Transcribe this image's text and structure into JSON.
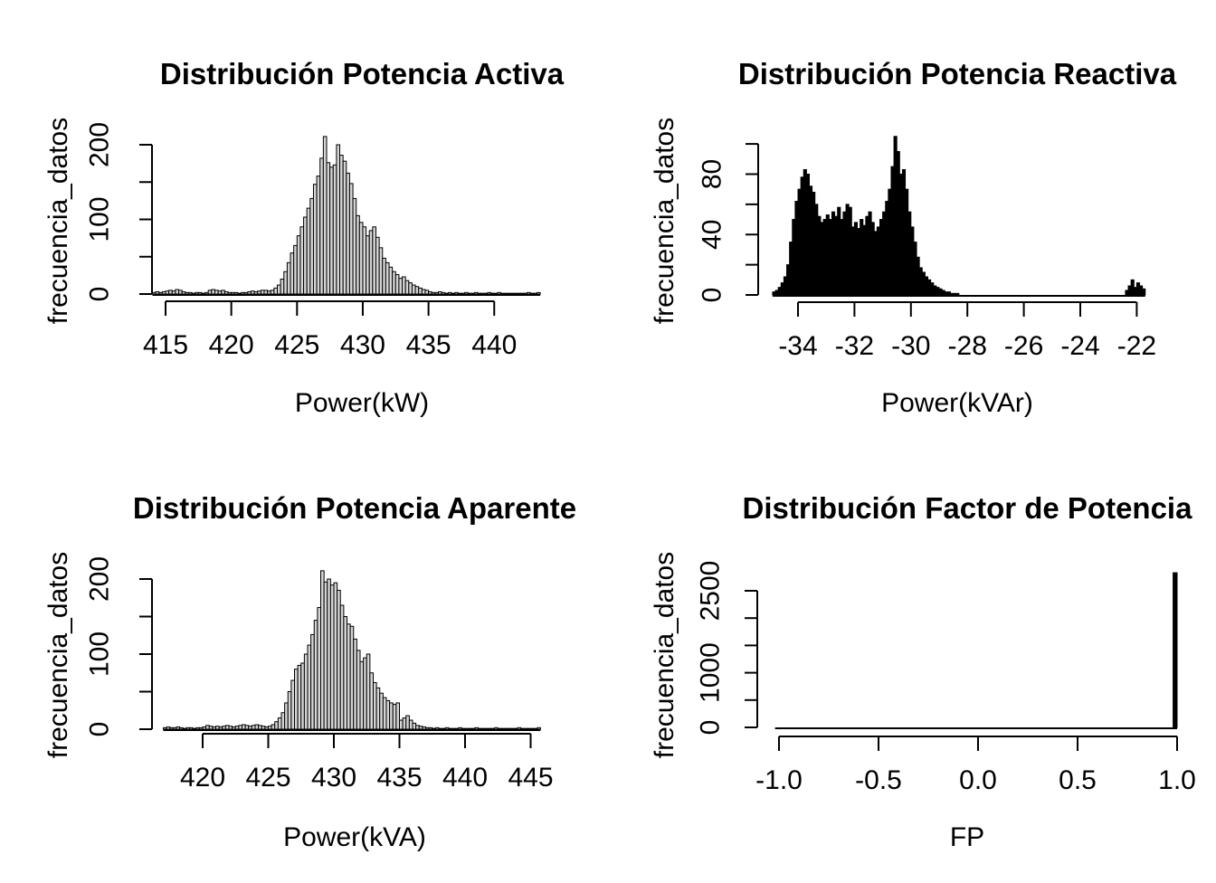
{
  "page": {
    "background": "#ffffff",
    "foreground": "#000000"
  },
  "chart_data": [
    {
      "type": "bar",
      "subtype": "histogram",
      "title": "Distribución Potencia Activa",
      "xlabel": "Power(kW)",
      "ylabel": "frecuencia_datos",
      "bar_fill": "#d4d4d4",
      "bar_stroke": "#000000",
      "grid": false,
      "legend": false,
      "xlim": [
        412.9,
        444.9
      ],
      "ylim": [
        0,
        211
      ],
      "bin_start": 414.0,
      "bin_width": 0.25,
      "counts": [
        2,
        3,
        2,
        3,
        4,
        5,
        4,
        6,
        5,
        3,
        2,
        2,
        1,
        2,
        2,
        1,
        2,
        5,
        6,
        5,
        4,
        5,
        3,
        2,
        2,
        2,
        1,
        2,
        2,
        3,
        4,
        3,
        4,
        5,
        5,
        4,
        5,
        8,
        12,
        20,
        30,
        42,
        55,
        65,
        78,
        90,
        103,
        115,
        128,
        147,
        158,
        182,
        211,
        176,
        170,
        173,
        200,
        186,
        178,
        162,
        148,
        128,
        105,
        96,
        90,
        78,
        85,
        90,
        76,
        62,
        48,
        42,
        36,
        30,
        26,
        21,
        23,
        18,
        15,
        12,
        10,
        8,
        6,
        5,
        3,
        2,
        2,
        3,
        2,
        1,
        2,
        1,
        2,
        1,
        1,
        2,
        1,
        1,
        2,
        1,
        1,
        1,
        2,
        1,
        1,
        2,
        1,
        1,
        1,
        1,
        1,
        1,
        1,
        1,
        2,
        1,
        1,
        2
      ],
      "x_ticks": [
        {
          "v": 415,
          "label": "415"
        },
        {
          "v": 420,
          "label": "420"
        },
        {
          "v": 425,
          "label": "425"
        },
        {
          "v": 430,
          "label": "430"
        },
        {
          "v": 435,
          "label": "435"
        },
        {
          "v": 440,
          "label": "440"
        }
      ],
      "y_ticks": [
        {
          "v": 0,
          "label": "0"
        },
        {
          "v": 50,
          "label": ""
        },
        {
          "v": 100,
          "label": "100"
        },
        {
          "v": 150,
          "label": ""
        },
        {
          "v": 200,
          "label": "200"
        }
      ]
    },
    {
      "type": "bar",
      "subtype": "histogram",
      "title": "Distribución Potencia Reactiva",
      "xlabel": "Power(kVAr)",
      "ylabel": "frecuencia_datos",
      "bar_fill": "#000000",
      "bar_stroke": "#000000",
      "grid": false,
      "legend": false,
      "xlim": [
        -35.3,
        -21.3
      ],
      "ylim": [
        0,
        105
      ],
      "bin_start": -34.9,
      "bin_width": 0.1,
      "counts": [
        2,
        3,
        5,
        8,
        12,
        20,
        35,
        50,
        62,
        70,
        78,
        83,
        80,
        72,
        68,
        60,
        52,
        48,
        50,
        53,
        50,
        55,
        52,
        58,
        50,
        55,
        60,
        58,
        45,
        48,
        44,
        50,
        46,
        52,
        55,
        48,
        42,
        45,
        50,
        55,
        62,
        70,
        85,
        105,
        95,
        80,
        83,
        70,
        55,
        45,
        35,
        25,
        18,
        15,
        12,
        10,
        8,
        6,
        5,
        4,
        3,
        2,
        2,
        1,
        1,
        1,
        0,
        0,
        0,
        0,
        0,
        0,
        0,
        0,
        0,
        0,
        0,
        0,
        0,
        0,
        0,
        0,
        0,
        0,
        0,
        0,
        0,
        0,
        0,
        0,
        0,
        0,
        0,
        0,
        0,
        0,
        0,
        0,
        0,
        0,
        0,
        0,
        0,
        0,
        0,
        0,
        0,
        0,
        0,
        0,
        0,
        0,
        0,
        0,
        0,
        0,
        0,
        0,
        0,
        0,
        0,
        0,
        0,
        0,
        0,
        3,
        6,
        10,
        5,
        8,
        6,
        4
      ],
      "x_ticks": [
        {
          "v": -34,
          "label": "-34"
        },
        {
          "v": -32,
          "label": "-32"
        },
        {
          "v": -30,
          "label": "-30"
        },
        {
          "v": -28,
          "label": "-28"
        },
        {
          "v": -26,
          "label": "-26"
        },
        {
          "v": -24,
          "label": "-24"
        },
        {
          "v": -22,
          "label": "-22"
        }
      ],
      "y_ticks": [
        {
          "v": 0,
          "label": "0"
        },
        {
          "v": 20,
          "label": ""
        },
        {
          "v": 40,
          "label": "40"
        },
        {
          "v": 60,
          "label": ""
        },
        {
          "v": 80,
          "label": "80"
        },
        {
          "v": 100,
          "label": ""
        }
      ]
    },
    {
      "type": "bar",
      "subtype": "histogram",
      "title": "Distribución Potencia Aparente",
      "xlabel": "Power(kVA)",
      "ylabel": "frecuencia_datos",
      "bar_fill": "#d4d4d4",
      "bar_stroke": "#000000",
      "grid": false,
      "legend": false,
      "xlim": [
        416.0,
        446.9
      ],
      "ylim": [
        0,
        211
      ],
      "bin_start": 417.0,
      "bin_width": 0.25,
      "counts": [
        2,
        3,
        2,
        2,
        3,
        2,
        1,
        2,
        2,
        1,
        2,
        2,
        3,
        5,
        4,
        3,
        4,
        3,
        4,
        5,
        4,
        3,
        4,
        5,
        6,
        5,
        4,
        5,
        6,
        5,
        4,
        3,
        4,
        6,
        10,
        15,
        22,
        35,
        50,
        65,
        80,
        85,
        88,
        100,
        112,
        126,
        145,
        162,
        211,
        196,
        200,
        192,
        195,
        185,
        165,
        150,
        140,
        137,
        120,
        105,
        90,
        95,
        100,
        75,
        62,
        55,
        48,
        42,
        38,
        35,
        33,
        35,
        12,
        15,
        18,
        12,
        8,
        5,
        4,
        3,
        2,
        2,
        1,
        2,
        1,
        1,
        2,
        1,
        1,
        1,
        2,
        1,
        1,
        1,
        1,
        2,
        1,
        1,
        1,
        1,
        1,
        2,
        1,
        1,
        1,
        1,
        1,
        1,
        2,
        1,
        1,
        1,
        1,
        1,
        2
      ],
      "x_ticks": [
        {
          "v": 420,
          "label": "420"
        },
        {
          "v": 425,
          "label": "425"
        },
        {
          "v": 430,
          "label": "430"
        },
        {
          "v": 435,
          "label": "435"
        },
        {
          "v": 440,
          "label": "440"
        },
        {
          "v": 445,
          "label": "445"
        }
      ],
      "y_ticks": [
        {
          "v": 0,
          "label": "0"
        },
        {
          "v": 50,
          "label": ""
        },
        {
          "v": 100,
          "label": "100"
        },
        {
          "v": 150,
          "label": ""
        },
        {
          "v": 200,
          "label": "200"
        }
      ]
    },
    {
      "type": "bar",
      "subtype": "histogram",
      "title": "Distribución Factor de Potencia",
      "xlabel": "FP",
      "ylabel": "frecuencia_datos",
      "bar_fill": "#000000",
      "bar_stroke": "#000000",
      "grid": false,
      "legend": false,
      "xlim": [
        -1.1,
        1.05
      ],
      "ylim": [
        0,
        2830
      ],
      "bin_start": -1.02,
      "bin_width": 0.02,
      "counts": [
        0,
        0,
        0,
        0,
        0,
        0,
        0,
        0,
        0,
        0,
        0,
        0,
        0,
        0,
        0,
        0,
        0,
        0,
        0,
        0,
        0,
        0,
        0,
        0,
        0,
        0,
        0,
        0,
        0,
        0,
        0,
        0,
        0,
        0,
        0,
        0,
        0,
        0,
        0,
        0,
        0,
        0,
        0,
        0,
        0,
        0,
        0,
        0,
        0,
        0,
        0,
        0,
        0,
        0,
        0,
        0,
        0,
        0,
        0,
        0,
        0,
        0,
        0,
        0,
        0,
        0,
        0,
        0,
        0,
        0,
        0,
        0,
        0,
        0,
        0,
        0,
        0,
        0,
        0,
        0,
        0,
        0,
        0,
        0,
        0,
        0,
        0,
        0,
        0,
        0,
        0,
        0,
        0,
        0,
        0,
        0,
        0,
        0,
        0,
        0,
        2830
      ],
      "x_ticks": [
        {
          "v": -1.0,
          "label": "-1.0"
        },
        {
          "v": -0.5,
          "label": "-0.5"
        },
        {
          "v": 0.0,
          "label": "0.0"
        },
        {
          "v": 0.5,
          "label": "0.5"
        },
        {
          "v": 1.0,
          "label": "1.0"
        }
      ],
      "y_ticks": [
        {
          "v": 0,
          "label": "0"
        },
        {
          "v": 500,
          "label": ""
        },
        {
          "v": 1000,
          "label": "1000"
        },
        {
          "v": 1500,
          "label": ""
        },
        {
          "v": 2000,
          "label": ""
        },
        {
          "v": 2500,
          "label": "2500"
        }
      ]
    }
  ]
}
